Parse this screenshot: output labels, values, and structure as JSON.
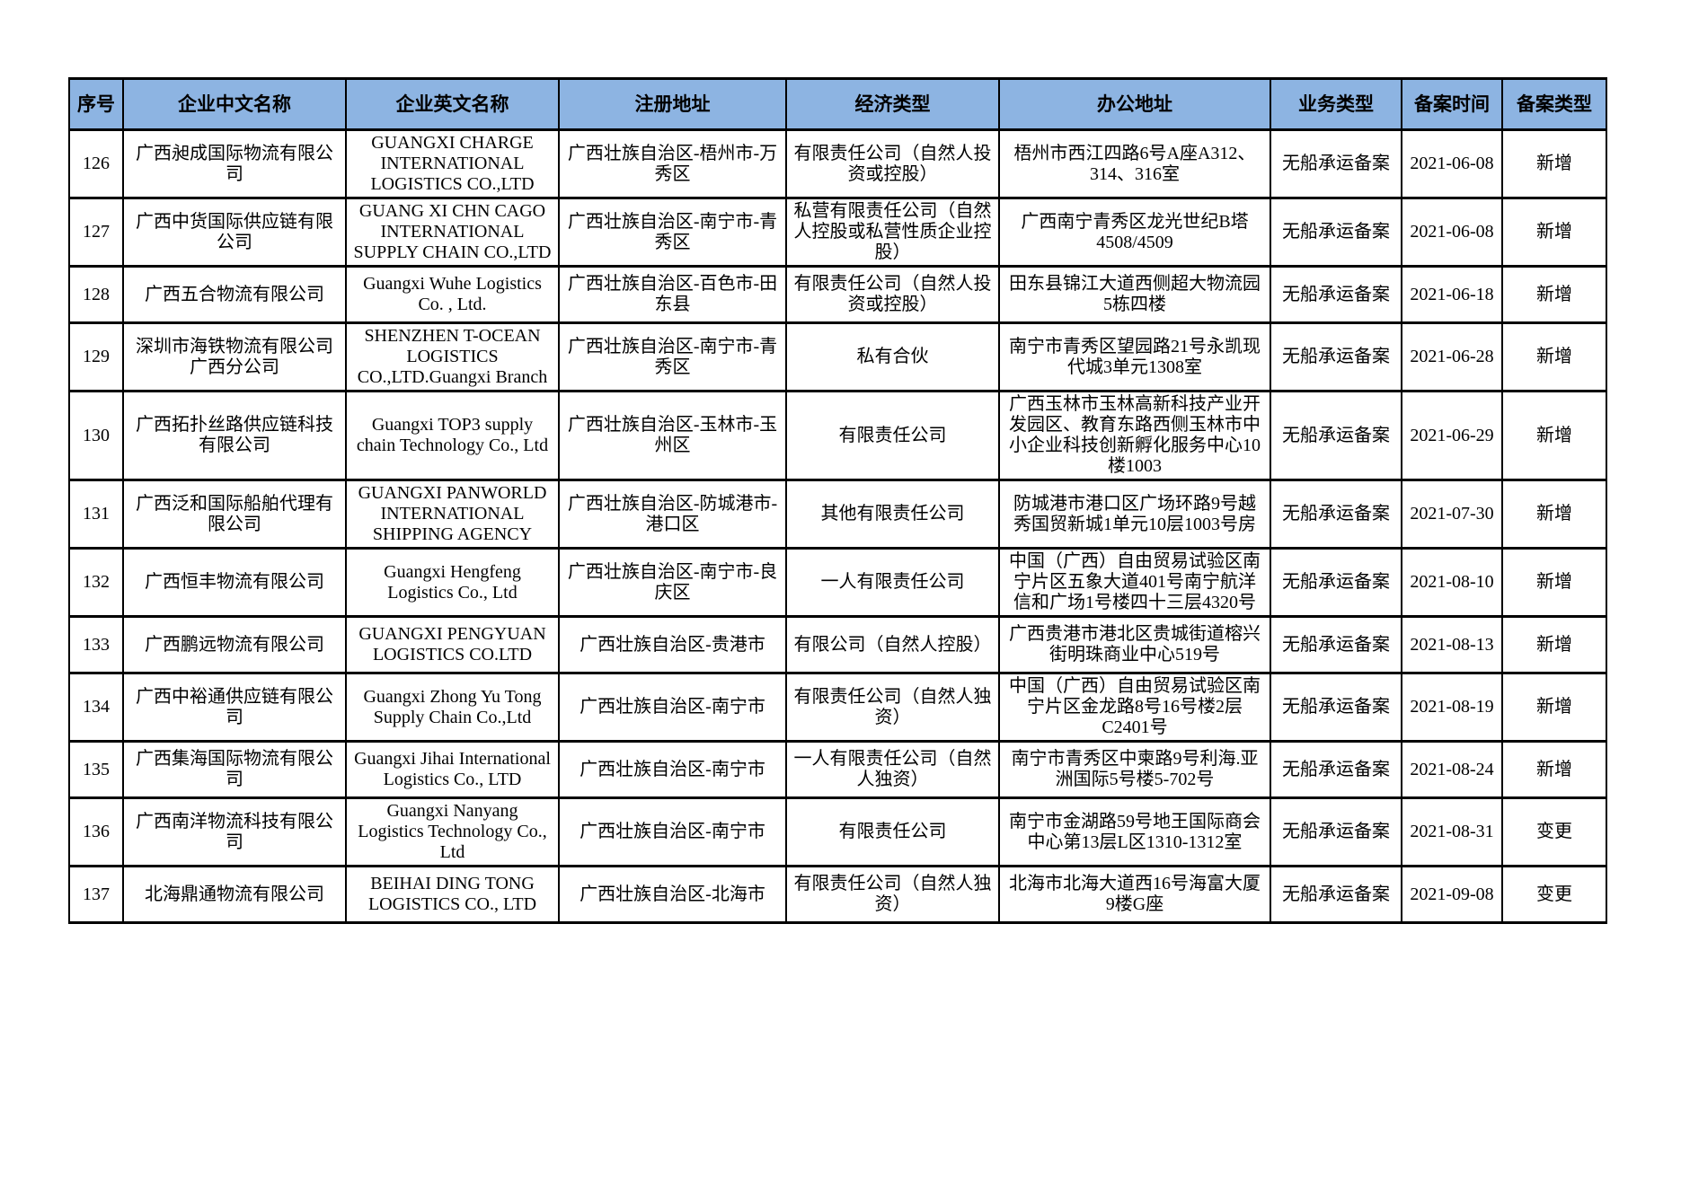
{
  "table": {
    "headers": [
      "序号",
      "企业中文名称",
      "企业英文名称",
      "注册地址",
      "经济类型",
      "办公地址",
      "业务类型",
      "备案时间",
      "备案类型"
    ],
    "rows": [
      {
        "seq": "126",
        "name_cn": "广西昶成国际物流有限公司",
        "name_en": "GUANGXI CHARGE INTERNATIONAL LOGISTICS CO.,LTD",
        "registered_address": "广西壮族自治区-梧州市-万秀区",
        "economic_type": "有限责任公司（自然人投资或控股）",
        "office_address": "梧州市西江四路6号A座A312、314、316室",
        "business_type": "无船承运备案",
        "filing_date": "2021-06-08",
        "filing_type": "新增"
      },
      {
        "seq": "127",
        "name_cn": "广西中货国际供应链有限公司",
        "name_en": "GUANG XI CHN CAGO INTERNATIONAL SUPPLY CHAIN CO.,LTD",
        "registered_address": "广西壮族自治区-南宁市-青秀区",
        "economic_type": "私营有限责任公司（自然人控股或私营性质企业控股）",
        "office_address": "广西南宁青秀区龙光世纪B塔4508/4509",
        "business_type": "无船承运备案",
        "filing_date": "2021-06-08",
        "filing_type": "新增"
      },
      {
        "seq": "128",
        "name_cn": "广西五合物流有限公司",
        "name_en": "Guangxi Wuhe Logistics Co. , Ltd.",
        "registered_address": "广西壮族自治区-百色市-田东县",
        "economic_type": "有限责任公司（自然人投资或控股）",
        "office_address": "田东县锦江大道西侧超大物流园5栋四楼",
        "business_type": "无船承运备案",
        "filing_date": "2021-06-18",
        "filing_type": "新增"
      },
      {
        "seq": "129",
        "name_cn": "深圳市海铁物流有限公司广西分公司",
        "name_en": "SHENZHEN T-OCEAN LOGISTICS CO.,LTD.Guangxi Branch",
        "registered_address": "广西壮族自治区-南宁市-青秀区",
        "economic_type": "私有合伙",
        "office_address": "南宁市青秀区望园路21号永凯现代城3单元1308室",
        "business_type": "无船承运备案",
        "filing_date": "2021-06-28",
        "filing_type": "新增"
      },
      {
        "seq": "130",
        "name_cn": "广西拓扑丝路供应链科技有限公司",
        "name_en": "Guangxi TOP3 supply chain Technology Co., Ltd",
        "registered_address": "广西壮族自治区-玉林市-玉州区",
        "economic_type": "有限责任公司",
        "office_address": "广西玉林市玉林高新科技产业开发园区、教育东路西侧玉林市中小企业科技创新孵化服务中心10楼1003",
        "business_type": "无船承运备案",
        "filing_date": "2021-06-29",
        "filing_type": "新增"
      },
      {
        "seq": "131",
        "name_cn": "广西泛和国际船舶代理有限公司",
        "name_en": "GUANGXI PANWORLD INTERNATIONAL SHIPPING AGENCY",
        "registered_address": "广西壮族自治区-防城港市-港口区",
        "economic_type": "其他有限责任公司",
        "office_address": "防城港市港口区广场环路9号越秀国贸新城1单元10层1003号房",
        "business_type": "无船承运备案",
        "filing_date": "2021-07-30",
        "filing_type": "新增"
      },
      {
        "seq": "132",
        "name_cn": "广西恒丰物流有限公司",
        "name_en": "Guangxi Hengfeng Logistics Co., Ltd",
        "registered_address": "广西壮族自治区-南宁市-良庆区",
        "economic_type": "一人有限责任公司",
        "office_address": "中国（广西）自由贸易试验区南宁片区五象大道401号南宁航洋信和广场1号楼四十三层4320号",
        "business_type": "无船承运备案",
        "filing_date": "2021-08-10",
        "filing_type": "新增"
      },
      {
        "seq": "133",
        "name_cn": "广西鹏远物流有限公司",
        "name_en": "GUANGXI PENGYUAN LOGISTICS CO.LTD",
        "registered_address": "广西壮族自治区-贵港市",
        "economic_type": "有限公司（自然人控股）",
        "office_address": "广西贵港市港北区贵城街道榕兴街明珠商业中心519号",
        "business_type": "无船承运备案",
        "filing_date": "2021-08-13",
        "filing_type": "新增"
      },
      {
        "seq": "134",
        "name_cn": "广西中裕通供应链有限公司",
        "name_en": "Guangxi Zhong Yu Tong Supply Chain Co.,Ltd",
        "registered_address": "广西壮族自治区-南宁市",
        "economic_type": "有限责任公司（自然人独资）",
        "office_address": "中国（广西）自由贸易试验区南宁片区金龙路8号16号楼2层C2401号",
        "business_type": "无船承运备案",
        "filing_date": "2021-08-19",
        "filing_type": "新增"
      },
      {
        "seq": "135",
        "name_cn": "广西集海国际物流有限公司",
        "name_en": "Guangxi Jihai International Logistics Co., LTD",
        "registered_address": "广西壮族自治区-南宁市",
        "economic_type": "一人有限责任公司（自然人独资）",
        "office_address": "南宁市青秀区中柬路9号利海.亚洲国际5号楼5-702号",
        "business_type": "无船承运备案",
        "filing_date": "2021-08-24",
        "filing_type": "新增"
      },
      {
        "seq": "136",
        "name_cn": "广西南洋物流科技有限公司",
        "name_en": "Guangxi Nanyang Logistics Technology Co., Ltd",
        "registered_address": "广西壮族自治区-南宁市",
        "economic_type": "有限责任公司",
        "office_address": "南宁市金湖路59号地王国际商会中心第13层L区1310-1312室",
        "business_type": "无船承运备案",
        "filing_date": "2021-08-31",
        "filing_type": "变更"
      },
      {
        "seq": "137",
        "name_cn": "北海鼎通物流有限公司",
        "name_en": "BEIHAI DING TONG LOGISTICS CO., LTD",
        "registered_address": "广西壮族自治区-北海市",
        "economic_type": "有限责任公司（自然人独资）",
        "office_address": "北海市北海大道西16号海富大厦9楼G座",
        "business_type": "无船承运备案",
        "filing_date": "2021-09-08",
        "filing_type": "变更"
      }
    ]
  },
  "colors": {
    "header_bg": "#8DB4E2",
    "border": "#000000",
    "page_bg": "#FFFFFF"
  }
}
